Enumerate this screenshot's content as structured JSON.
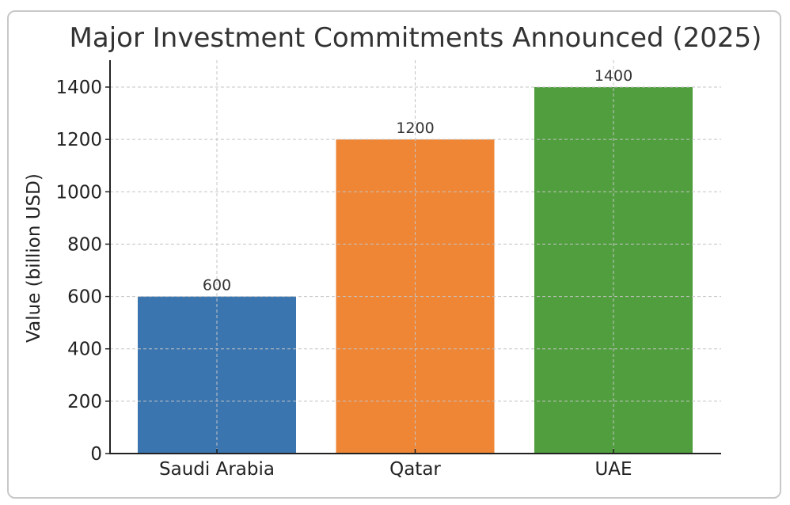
{
  "chart_data": {
    "type": "bar",
    "title": "Major Investment Commitments Announced (2025)",
    "xlabel": "",
    "ylabel": "Value (billion USD)",
    "categories": [
      "Saudi Arabia",
      "Qatar",
      "UAE"
    ],
    "values": [
      600,
      1200,
      1400
    ],
    "data_labels": [
      "600",
      "1200",
      "1400"
    ],
    "colors": [
      "#3a75af",
      "#ef8636",
      "#519e3e"
    ],
    "ylim": [
      0,
      1500
    ],
    "yticks": [
      0,
      200,
      400,
      600,
      800,
      1000,
      1200,
      1400
    ],
    "grid": true,
    "grid_style": "dashed",
    "legend": null
  }
}
